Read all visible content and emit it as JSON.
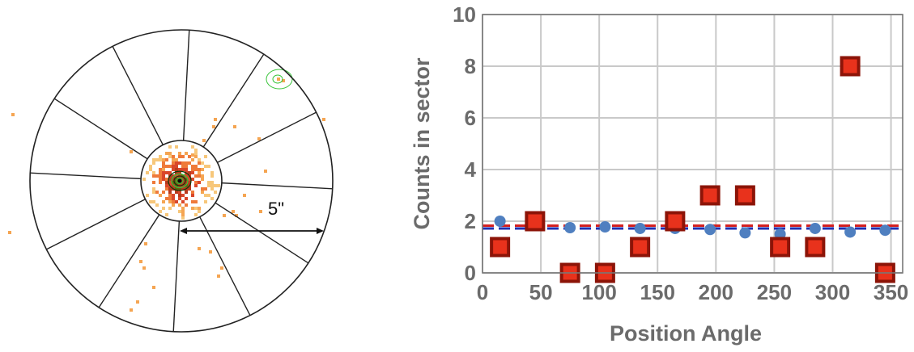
{
  "image_panel": {
    "scale_label": "5\"",
    "colors": {
      "ring": "#222222",
      "contour_green": "#39c43a",
      "contour_dark": "#0b3a0b",
      "pixel_palette": [
        "#f7c77a",
        "#f5a552",
        "#ef7a3a",
        "#d9472a",
        "#b83a1e",
        "#6a5a10"
      ]
    }
  },
  "chart_data": {
    "type": "scatter",
    "xlabel": "Position Angle",
    "ylabel": "Counts in sector",
    "xlim": [
      0,
      360
    ],
    "ylim": [
      0,
      10
    ],
    "x_ticks": [
      0,
      50,
      100,
      150,
      200,
      250,
      300,
      350
    ],
    "y_ticks": [
      0,
      2,
      4,
      6,
      8,
      10
    ],
    "grid": true,
    "series": [
      {
        "marker": "square",
        "color": "#e8321c",
        "edge_color": "#8c1408",
        "x": [
          15,
          45,
          75,
          105,
          135,
          165,
          195,
          225,
          255,
          285,
          315,
          345
        ],
        "y": [
          1,
          2,
          0,
          0,
          1,
          2,
          3,
          3,
          1,
          1,
          8,
          0
        ]
      },
      {
        "marker": "circle",
        "color": "#4f7fc0",
        "x": [
          15,
          45,
          75,
          105,
          135,
          165,
          195,
          225,
          255,
          285,
          315,
          345
        ],
        "y": [
          2.0,
          1.9,
          1.75,
          1.78,
          1.72,
          1.72,
          1.68,
          1.55,
          1.5,
          1.72,
          1.58,
          1.65
        ]
      }
    ],
    "reference_lines": [
      {
        "y": 1.83,
        "color": "#d42020",
        "style": "dashed"
      },
      {
        "y": 1.72,
        "color": "#2030b0",
        "style": "dashed"
      }
    ]
  }
}
